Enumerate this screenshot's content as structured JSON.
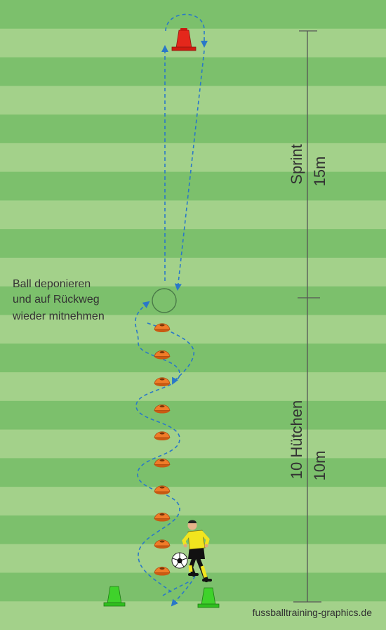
{
  "field": {
    "stripe_light": "#a3d18a",
    "stripe_dark": "#7cc06c",
    "stripe_count": 22
  },
  "annotation": {
    "lines": [
      "Ball deponieren",
      "und auf Rückweg",
      "wieder mitnehmen"
    ]
  },
  "measure": {
    "sprint_label": "Sprint",
    "sprint_distance": "15m",
    "huetchen_label": "10 Hütchen",
    "huetchen_distance": "10m"
  },
  "footer": {
    "credit": "fussballtraining-graphics.de"
  },
  "colors": {
    "path": "#2a78c8",
    "cone_orange": "#f07c28",
    "cone_red": "#e4271b",
    "cone_green": "#3fd22b",
    "player_shirt": "#f2e51e",
    "line": "#555555"
  },
  "counts": {
    "orange_cones": 10
  }
}
